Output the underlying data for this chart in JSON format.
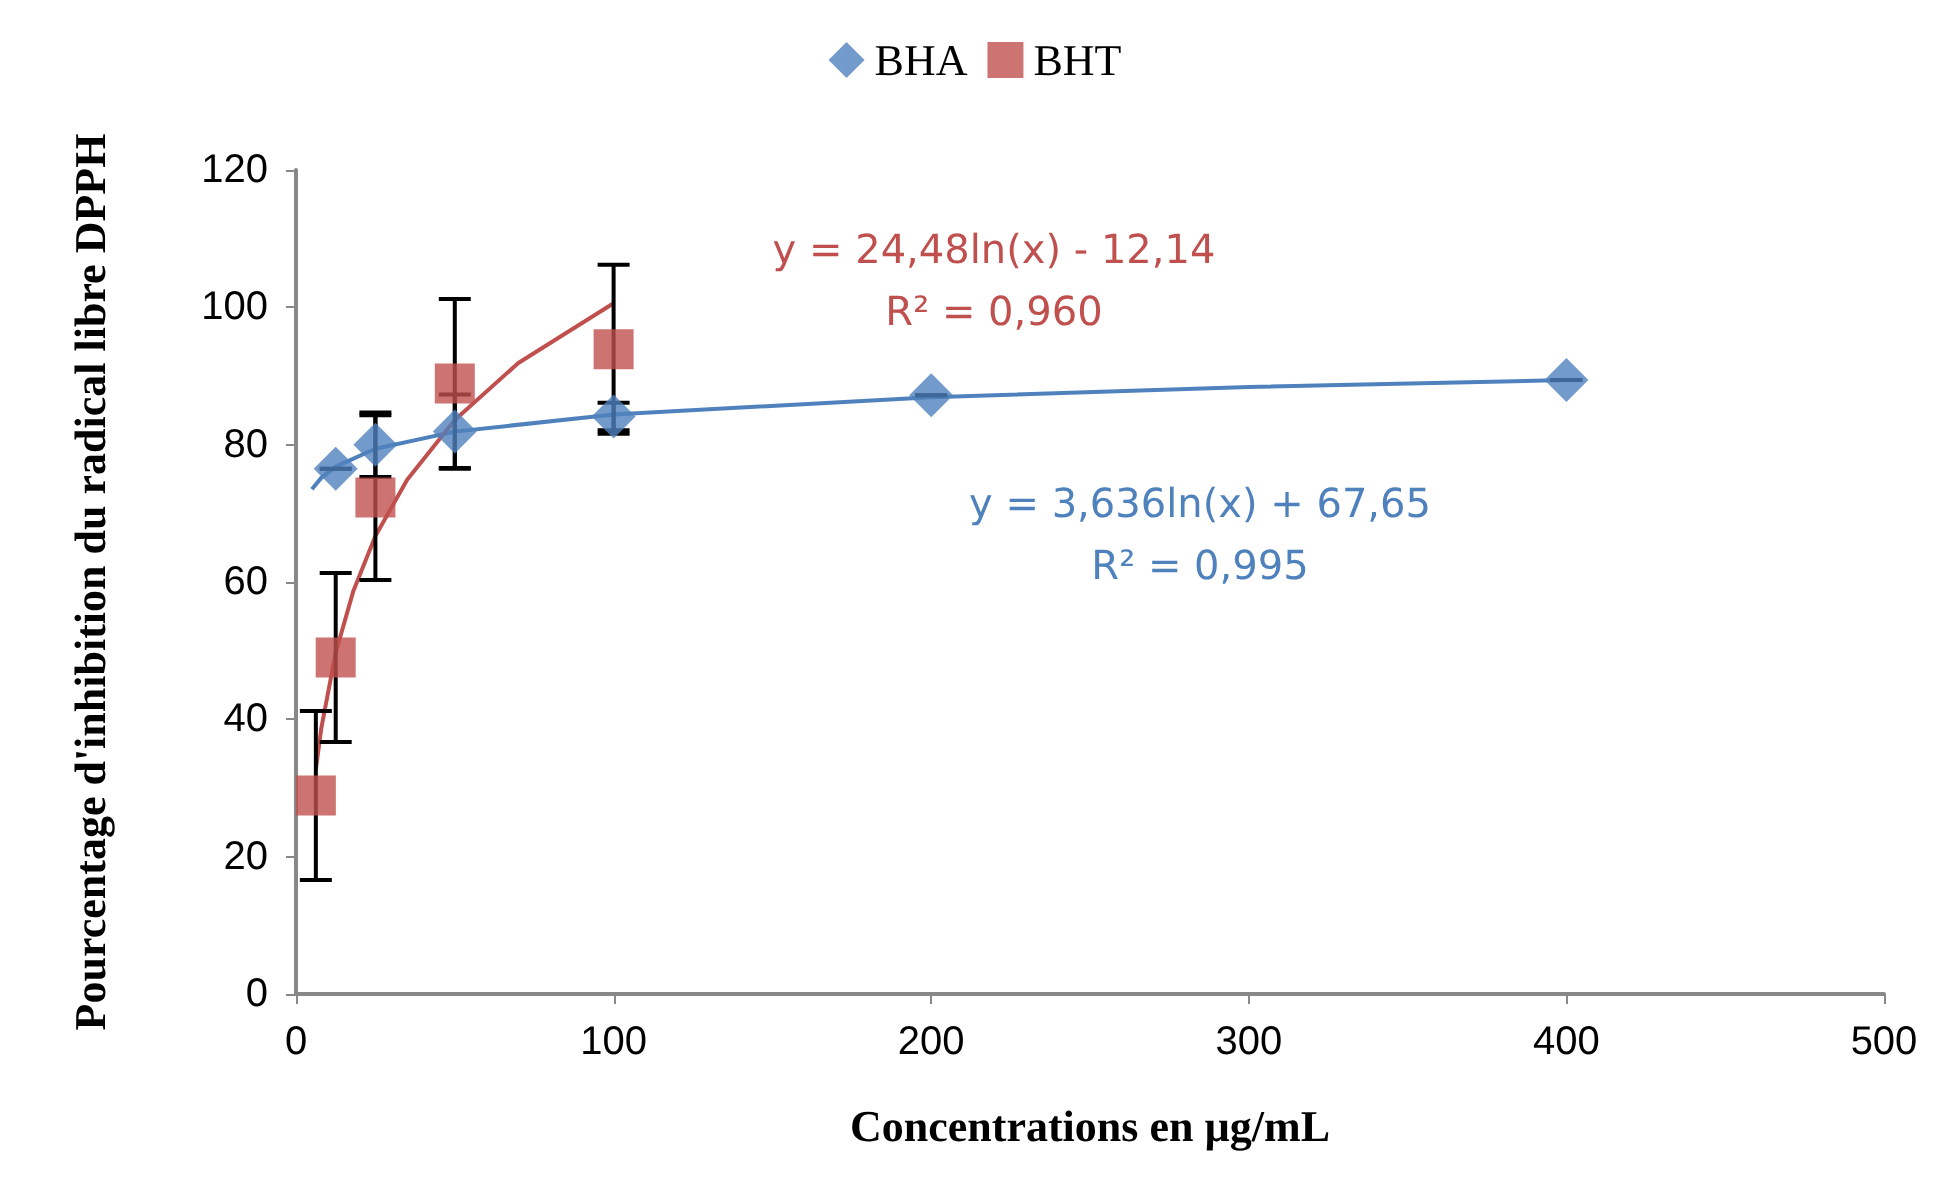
{
  "chart_data": {
    "type": "scatter",
    "xlabel": "Concentrations en µg/mL",
    "ylabel": "Pourcentage d'inhibition du radical libre DPPH",
    "xlim": [
      0,
      500
    ],
    "xticks": [
      0,
      100,
      200,
      300,
      400,
      500
    ],
    "ylim": [
      0,
      120
    ],
    "yticks": [
      0,
      20,
      40,
      60,
      80,
      100,
      120
    ],
    "grid": false,
    "legend": "top",
    "series": [
      {
        "name": "BHA",
        "color": "#4f81bd",
        "marker": "diamond",
        "x": [
          12.5,
          25,
          50,
          100,
          200,
          400
        ],
        "values": [
          76.5,
          80,
          81.9,
          84.1,
          87.2,
          89.4
        ],
        "errors": [
          null,
          4.7,
          5.4,
          2,
          null,
          null
        ]
      },
      {
        "name": "BHT",
        "color": "#c0504d",
        "marker": "square",
        "x": [
          6.25,
          12.5,
          25,
          50,
          100
        ],
        "values": [
          28.9,
          49,
          72.3,
          88.9,
          93.9
        ],
        "errors": [
          12.3,
          12.3,
          12,
          12.3,
          12.3
        ]
      },
      {
        "color": "#4f81bd",
        "type": "line",
        "marker": "none",
        "x": [
          5,
          8,
          12.5,
          25,
          50,
          100,
          200,
          300,
          400
        ],
        "values": [
          73.5,
          75.2,
          76.8,
          79.4,
          81.9,
          84.4,
          86.9,
          88.4,
          89.4
        ]
      },
      {
        "color": "#c0504d",
        "type": "line",
        "marker": "none",
        "x": [
          6.25,
          8,
          12.5,
          18,
          25,
          35,
          50,
          70,
          100
        ],
        "values": [
          32.7,
          38.8,
          49.7,
          58.6,
          66.7,
          74.9,
          83.6,
          91.9,
          100.6
        ]
      }
    ],
    "annotations": [
      "y = 3,636ln(x) + 67,65\nR² = 0,995",
      "y = 24,48ln(x) - 12,14\nR² = 0,960"
    ]
  }
}
